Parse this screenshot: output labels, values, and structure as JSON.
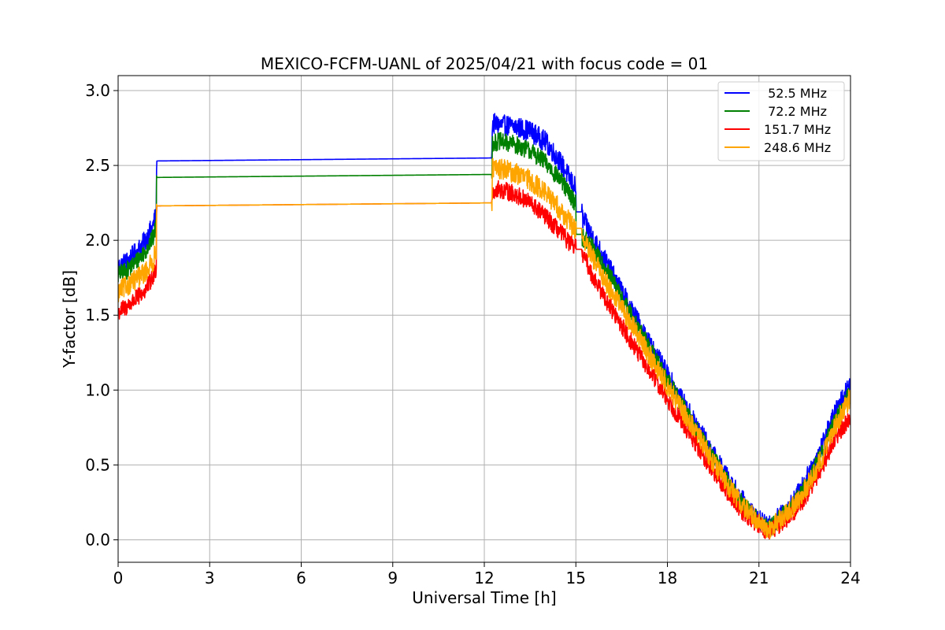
{
  "chart_data": {
    "type": "line",
    "title": "MEXICO-FCFM-UANL of 2025/04/21 with focus code = 01",
    "xlabel": "Universal Time [h]",
    "ylabel": "Y-factor [dB]",
    "xlim": [
      0,
      24
    ],
    "ylim": [
      -0.15,
      3.1
    ],
    "xticks": [
      0,
      3,
      6,
      9,
      12,
      15,
      18,
      21,
      24
    ],
    "yticks": [
      0.0,
      0.5,
      1.0,
      1.5,
      2.0,
      2.5,
      3.0
    ],
    "xtick_labels": [
      "0",
      "3",
      "6",
      "9",
      "12",
      "15",
      "18",
      "21",
      "24"
    ],
    "ytick_labels": [
      "0.0",
      "0.5",
      "1.0",
      "1.5",
      "2.0",
      "2.5",
      "3.0"
    ],
    "grid": true,
    "legend_position": "top-right",
    "series": [
      {
        "name": "52.5 MHz",
        "legend_label": " 52.5 MHz",
        "color": "#0000ff",
        "noise": 0.07,
        "x": [
          0,
          0.3,
          0.6,
          0.9,
          1.15,
          1.25,
          1.26,
          12.25,
          12.26,
          12.5,
          13.0,
          13.5,
          14.0,
          14.5,
          14.95,
          15.0,
          15.01,
          15.2,
          15.21,
          15.5,
          16.0,
          16.5,
          17.0,
          17.5,
          18.0,
          18.5,
          19.0,
          19.5,
          20.0,
          20.5,
          21.0,
          21.3,
          21.5,
          22.0,
          22.5,
          23.0,
          23.5,
          24.0
        ],
        "y": [
          1.82,
          1.86,
          1.92,
          2.0,
          2.1,
          2.18,
          2.53,
          2.55,
          2.78,
          2.77,
          2.76,
          2.73,
          2.66,
          2.52,
          2.36,
          2.36,
          2.19,
          2.19,
          2.15,
          2.04,
          1.85,
          1.66,
          1.47,
          1.28,
          1.1,
          0.92,
          0.75,
          0.57,
          0.4,
          0.25,
          0.13,
          0.08,
          0.12,
          0.22,
          0.38,
          0.6,
          0.85,
          1.05
        ]
      },
      {
        "name": "72.2 MHz",
        "legend_label": " 72.2 MHz",
        "color": "#008000",
        "noise": 0.06,
        "x": [
          0,
          0.3,
          0.6,
          0.9,
          1.15,
          1.25,
          1.26,
          12.25,
          12.26,
          12.5,
          13.0,
          13.5,
          14.0,
          14.5,
          14.95,
          15.0,
          15.01,
          15.2,
          15.21,
          15.5,
          16.0,
          16.5,
          17.0,
          17.5,
          18.0,
          18.5,
          19.0,
          19.5,
          20.0,
          20.5,
          21.0,
          21.3,
          21.5,
          22.0,
          22.5,
          23.0,
          23.5,
          24.0
        ],
        "y": [
          1.77,
          1.8,
          1.86,
          1.93,
          2.02,
          2.1,
          2.42,
          2.44,
          2.65,
          2.66,
          2.64,
          2.6,
          2.52,
          2.4,
          2.26,
          2.26,
          2.04,
          2.04,
          2.02,
          1.97,
          1.8,
          1.62,
          1.43,
          1.25,
          1.07,
          0.89,
          0.72,
          0.55,
          0.38,
          0.23,
          0.12,
          0.07,
          0.11,
          0.2,
          0.35,
          0.55,
          0.8,
          0.98
        ]
      },
      {
        "name": "151.7 MHz",
        "legend_label": "151.7 MHz",
        "color": "#ff0000",
        "noise": 0.06,
        "x": [
          0,
          0.3,
          0.6,
          0.9,
          1.15,
          1.25,
          1.26,
          12.25,
          12.26,
          12.5,
          13.0,
          13.5,
          14.0,
          14.5,
          14.95,
          15.0,
          15.01,
          15.2,
          15.21,
          15.5,
          16.0,
          16.5,
          17.0,
          17.5,
          18.0,
          18.5,
          19.0,
          19.5,
          20.0,
          20.5,
          21.0,
          21.3,
          21.5,
          22.0,
          22.5,
          23.0,
          23.5,
          24.0
        ],
        "y": [
          1.52,
          1.56,
          1.61,
          1.67,
          1.75,
          1.82,
          2.23,
          2.25,
          2.33,
          2.34,
          2.31,
          2.25,
          2.16,
          2.05,
          1.95,
          1.95,
          1.94,
          1.94,
          1.92,
          1.78,
          1.6,
          1.43,
          1.26,
          1.1,
          0.94,
          0.78,
          0.62,
          0.46,
          0.31,
          0.18,
          0.1,
          0.05,
          0.08,
          0.15,
          0.28,
          0.46,
          0.68,
          0.82
        ]
      },
      {
        "name": "248.6 MHz",
        "legend_label": "248.6 MHz",
        "color": "#ffa500",
        "noise": 0.07,
        "x": [
          0,
          0.3,
          0.6,
          0.9,
          1.15,
          1.25,
          1.26,
          12.25,
          12.26,
          12.5,
          13.0,
          13.5,
          14.0,
          14.5,
          14.95,
          15.0,
          15.01,
          15.2,
          15.21,
          15.5,
          16.0,
          16.5,
          17.0,
          17.5,
          18.0,
          18.5,
          19.0,
          19.5,
          20.0,
          20.5,
          21.0,
          21.3,
          21.5,
          22.0,
          22.5,
          23.0,
          23.5,
          24.0
        ],
        "y": [
          1.65,
          1.7,
          1.74,
          1.79,
          1.86,
          1.94,
          2.23,
          2.25,
          2.48,
          2.48,
          2.45,
          2.4,
          2.32,
          2.2,
          2.08,
          2.08,
          2.08,
          2.08,
          2.02,
          1.9,
          1.72,
          1.55,
          1.38,
          1.2,
          1.03,
          0.86,
          0.7,
          0.52,
          0.36,
          0.22,
          0.12,
          0.06,
          0.1,
          0.19,
          0.33,
          0.52,
          0.76,
          0.96
        ]
      }
    ]
  }
}
